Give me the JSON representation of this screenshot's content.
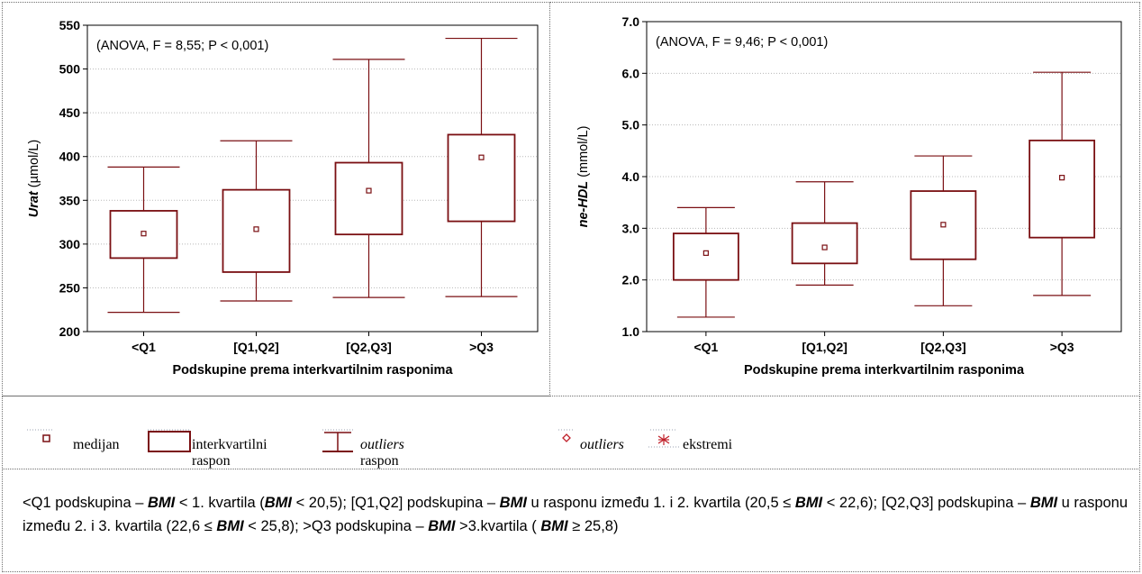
{
  "chart_data": [
    {
      "type": "box",
      "annotation": "(ANOVA, F = 8,55; P < 0,001)",
      "ylabel_bold": "Urat",
      "ylabel_unit": " (µmol/L)",
      "xlabel": "Podskupine prema interkvartilnim rasponima",
      "ylim": [
        200,
        550
      ],
      "yticks": [
        "200",
        "250",
        "300",
        "350",
        "400",
        "450",
        "500",
        "550"
      ],
      "categories": [
        "<Q1",
        "[Q1,Q2]",
        "[Q2,Q3]",
        ">Q3"
      ],
      "boxes": [
        {
          "min": 222,
          "q1": 284,
          "median": 312,
          "q3": 338,
          "max": 388
        },
        {
          "min": 235,
          "q1": 268,
          "median": 317,
          "q3": 362,
          "max": 418
        },
        {
          "min": 239,
          "q1": 311,
          "median": 361,
          "q3": 393,
          "max": 511
        },
        {
          "min": 240,
          "q1": 326,
          "median": 399,
          "q3": 425,
          "max": 535
        }
      ],
      "color": "#7a0f12",
      "grid": true
    },
    {
      "type": "box",
      "annotation": "(ANOVA, F = 9,46; P < 0,001)",
      "ylabel_bold": "ne-HDL",
      "ylabel_unit": " (mmol/L)",
      "xlabel": "Podskupine prema interkvartilnim rasponima",
      "ylim": [
        1.0,
        7.0
      ],
      "yticks": [
        "1.0",
        "2.0",
        "3.0",
        "4.0",
        "5.0",
        "6.0",
        "7.0"
      ],
      "categories": [
        "<Q1",
        "[Q1,Q2]",
        "[Q2,Q3]",
        ">Q3"
      ],
      "boxes": [
        {
          "min": 1.28,
          "q1": 2.0,
          "median": 2.52,
          "q3": 2.9,
          "max": 3.4
        },
        {
          "min": 1.9,
          "q1": 2.32,
          "median": 2.63,
          "q3": 3.1,
          "max": 3.9
        },
        {
          "min": 1.5,
          "q1": 2.4,
          "median": 3.07,
          "q3": 3.72,
          "max": 4.4
        },
        {
          "min": 1.7,
          "q1": 2.82,
          "median": 3.98,
          "q3": 4.7,
          "max": 6.02
        }
      ],
      "color": "#7a0f12",
      "grid": true
    }
  ],
  "legend": {
    "median": "medijan",
    "iqr": "interkvartilni raspon",
    "outliers_range_italic": "outliers",
    "outliers_range_rest": " raspon",
    "outliers": "outliers",
    "extremes": "ekstremi"
  },
  "note": {
    "p1": "<Q1 podskupina – ",
    "bmi": "BMI",
    "p2": " < 1. kvartila (",
    "p3": " < 20,5); [Q1,Q2] podskupina – ",
    "p4": " u rasponu između 1. i 2. kvartila (20,5 ≤ ",
    "p5": " < 22,6); [Q2,Q3] podskupina – ",
    "p6": " u rasponu između 2. i 3. kvartila (22,6 ≤ ",
    "p7": " < 25,8); >Q3 podskupina – ",
    "p8": " >3.kvartila ( ",
    "p9": " ≥ 25,8)"
  }
}
